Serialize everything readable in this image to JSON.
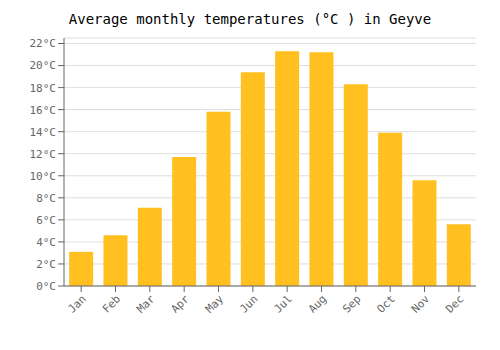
{
  "chart_data": {
    "type": "bar",
    "title": "Average monthly temperatures (°C ) in Geyve",
    "categories": [
      "Jan",
      "Feb",
      "Mar",
      "Apr",
      "May",
      "Jun",
      "Jul",
      "Aug",
      "Sep",
      "Oct",
      "Nov",
      "Dec"
    ],
    "values": [
      3.1,
      4.6,
      7.1,
      11.7,
      15.8,
      19.4,
      21.3,
      21.2,
      18.3,
      13.9,
      9.6,
      5.6
    ],
    "color": "#FFC020",
    "ylim": [
      0,
      22.5
    ],
    "yticks": [
      {
        "value": 0,
        "label": "0°C"
      },
      {
        "value": 2,
        "label": "2°C"
      },
      {
        "value": 4,
        "label": "4°C"
      },
      {
        "value": 6,
        "label": "6°C"
      },
      {
        "value": 8,
        "label": "8°C"
      },
      {
        "value": 10,
        "label": "10°C"
      },
      {
        "value": 12,
        "label": "12°C"
      },
      {
        "value": 14,
        "label": "14°C"
      },
      {
        "value": 16,
        "label": "16°C"
      },
      {
        "value": 18,
        "label": "18°C"
      },
      {
        "value": 20,
        "label": "20°C"
      },
      {
        "value": 22,
        "label": "22°C"
      }
    ],
    "grid": true
  }
}
